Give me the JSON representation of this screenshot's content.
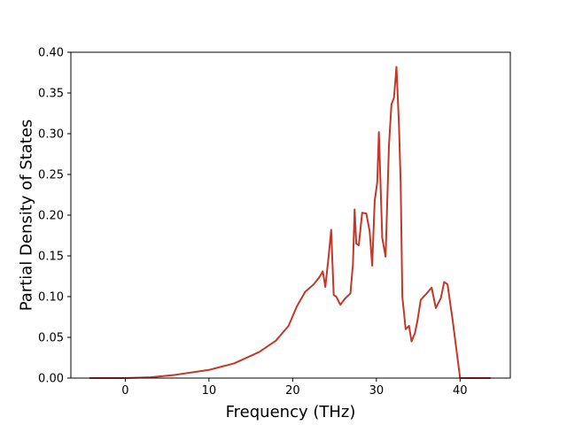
{
  "chart_data": {
    "type": "line",
    "title": "",
    "xlabel": "Frequency (THz)",
    "ylabel": "Partial Density of States",
    "xlim": [
      -6.5,
      46
    ],
    "ylim": [
      0,
      0.4
    ],
    "x_ticks": [
      0,
      10,
      20,
      30,
      40
    ],
    "y_ticks": [
      0.0,
      0.05,
      0.1,
      0.15,
      0.2,
      0.25,
      0.3,
      0.35,
      0.4
    ],
    "x_tick_labels": [
      "0",
      "10",
      "20",
      "30",
      "40"
    ],
    "y_tick_labels": [
      "0.00",
      "0.05",
      "0.10",
      "0.15",
      "0.20",
      "0.25",
      "0.30",
      "0.35",
      "0.40"
    ],
    "grid": false,
    "legend": "none",
    "series": [
      {
        "color": "#c0392b",
        "x": [
          -4.2,
          0,
          3,
          6,
          10,
          13,
          16,
          18,
          19.5,
          20.5,
          21.5,
          22.5,
          23.2,
          23.6,
          23.9,
          24.3,
          24.6,
          24.9,
          25.2,
          25.7,
          26.2,
          26.9,
          27.2,
          27.4,
          27.6,
          27.9,
          28.3,
          28.8,
          29.2,
          29.5,
          29.8,
          30.1,
          30.3,
          30.7,
          31.1,
          31.5,
          31.8,
          32.1,
          32.4,
          32.7,
          32.9,
          33.1,
          33.5,
          33.9,
          34.2,
          34.6,
          34.9,
          35.3,
          36.1,
          36.6,
          37.1,
          37.7,
          38.1,
          38.5,
          39.1,
          39.5,
          40.0,
          43.6
        ],
        "y": [
          0.0,
          0.0,
          0.001,
          0.004,
          0.01,
          0.018,
          0.032,
          0.046,
          0.064,
          0.088,
          0.106,
          0.115,
          0.124,
          0.131,
          0.112,
          0.15,
          0.182,
          0.102,
          0.1,
          0.09,
          0.097,
          0.104,
          0.14,
          0.207,
          0.165,
          0.163,
          0.203,
          0.202,
          0.18,
          0.138,
          0.218,
          0.24,
          0.302,
          0.172,
          0.149,
          0.285,
          0.336,
          0.344,
          0.382,
          0.31,
          0.24,
          0.1,
          0.06,
          0.064,
          0.045,
          0.055,
          0.07,
          0.096,
          0.105,
          0.111,
          0.086,
          0.098,
          0.118,
          0.115,
          0.072,
          0.04,
          0.0,
          0.0
        ]
      }
    ]
  }
}
